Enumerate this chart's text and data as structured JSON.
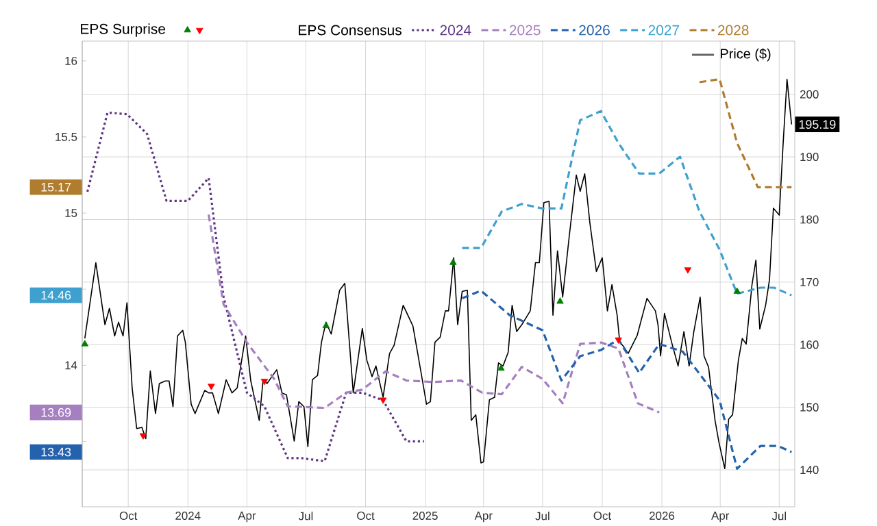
{
  "chart_data": {
    "type": "line",
    "xlim": [
      "2023-07-22",
      "2026-07-25"
    ],
    "xticks": [
      {
        "value": "2023-10-01",
        "label": "Oct"
      },
      {
        "value": "2024-01-01",
        "label": "2024"
      },
      {
        "value": "2024-04-01",
        "label": "Apr"
      },
      {
        "value": "2024-07-01",
        "label": "Jul"
      },
      {
        "value": "2024-10-01",
        "label": "Oct"
      },
      {
        "value": "2025-01-01",
        "label": "2025"
      },
      {
        "value": "2025-04-01",
        "label": "Apr"
      },
      {
        "value": "2025-07-01",
        "label": "Jul"
      },
      {
        "value": "2025-10-01",
        "label": "Oct"
      },
      {
        "value": "2026-01-01",
        "label": "2026"
      },
      {
        "value": "2026-04-01",
        "label": "Apr"
      },
      {
        "value": "2026-07-01",
        "label": "Jul"
      }
    ],
    "ylim": [
      13.07,
      16.13
    ],
    "yticks": [
      {
        "value": 13.5,
        "label": null
      },
      14,
      {
        "value": 14.5,
        "label": null
      },
      15,
      15.5,
      16
    ],
    "y2lim": [
      134.1,
      208.5
    ],
    "y2ticks": [
      140,
      150,
      160,
      170,
      180,
      190,
      200
    ],
    "grid": true,
    "legend": "top",
    "legend_title": "EPS Consensus",
    "annotations": [
      "EPS Surprise",
      "15.17",
      "14.46",
      "13.69",
      "13.43"
    ],
    "series": [
      {
        "type": "scatter",
        "axis": "y2",
        "marker": "triangle",
        "color": "#008000",
        "x": [
          "2023-07-26",
          "2024-08-01",
          "2025-02-13",
          "2025-04-28",
          "2025-07-28",
          "2026-04-27"
        ],
        "values": [
          160.1,
          163.0,
          173.1,
          156.2,
          166.9,
          168.5
        ]
      },
      {
        "type": "scatter",
        "axis": "y2",
        "marker": "triangle",
        "color": "#ff0000",
        "x": [
          "2023-10-24",
          "2024-02-06",
          "2024-04-28",
          "2024-10-28",
          "2025-10-26",
          "2026-02-10"
        ],
        "values": [
          145.5,
          153.4,
          154.2,
          151.2,
          160.8,
          172.0
        ]
      },
      {
        "name": "2024",
        "color": "#5e3585",
        "line_style": "dotted",
        "x": [
          "2023-07-30",
          "2023-08-30",
          "2023-09-29",
          "2023-10-30",
          "2023-11-29",
          "2024-01-01",
          "2024-02-02",
          "2024-02-25",
          "2024-04-01",
          "2024-04-28",
          "2024-06-03",
          "2024-06-24",
          "2024-07-30",
          "2024-09-01",
          "2024-09-26",
          "2024-10-28",
          "2024-12-03",
          "2024-12-30"
        ],
        "values": [
          15.14,
          15.66,
          15.65,
          15.52,
          15.08,
          15.08,
          15.23,
          14.45,
          13.82,
          13.73,
          13.39,
          13.39,
          13.37,
          13.82,
          13.82,
          13.77,
          13.5,
          13.5
        ]
      },
      {
        "name": "2025",
        "color": "#a57fbf",
        "line_style": "dashed",
        "x": [
          "2024-02-02",
          "2024-02-25",
          "2024-04-01",
          "2024-05-13",
          "2024-06-03",
          "2024-07-30",
          "2024-09-01",
          "2024-09-26",
          "2024-11-01",
          "2024-12-03",
          "2025-01-14",
          "2025-02-25",
          "2025-03-30",
          "2025-04-29",
          "2025-05-30",
          "2025-07-01",
          "2025-08-01",
          "2025-08-28",
          "2025-09-29",
          "2025-10-26",
          "2025-11-25",
          "2025-12-28"
        ],
        "values": [
          14.99,
          14.4,
          14.15,
          13.91,
          13.73,
          13.72,
          13.82,
          13.84,
          13.96,
          13.9,
          13.89,
          13.9,
          13.82,
          13.81,
          13.99,
          13.91,
          13.75,
          14.14,
          14.15,
          14.11,
          13.75,
          13.69
        ]
      },
      {
        "name": "2026",
        "color": "#2462ad",
        "line_style": "dashed",
        "x": [
          "2025-02-27",
          "2025-03-28",
          "2025-05-11",
          "2025-07-01",
          "2025-07-30",
          "2025-08-28",
          "2025-09-29",
          "2025-10-26",
          "2025-11-27",
          "2025-12-28",
          "2026-02-02",
          "2026-03-31",
          "2026-04-27",
          "2026-06-02",
          "2026-06-29",
          "2026-07-20"
        ],
        "values": [
          14.44,
          14.49,
          14.33,
          14.23,
          13.9,
          14.06,
          14.1,
          14.17,
          13.95,
          14.14,
          14.09,
          13.77,
          13.32,
          13.47,
          13.47,
          13.43
        ]
      },
      {
        "name": "2027",
        "color": "#3da0cf",
        "line_style": "dashed",
        "x": [
          "2025-02-27",
          "2025-03-28",
          "2025-04-29",
          "2025-05-30",
          "2025-07-01",
          "2025-07-30",
          "2025-08-28",
          "2025-09-29",
          "2025-10-26",
          "2025-11-27",
          "2025-12-28",
          "2026-01-29",
          "2026-02-28",
          "2026-03-31",
          "2026-04-27",
          "2026-06-02",
          "2026-06-23",
          "2026-07-20"
        ],
        "values": [
          14.77,
          14.77,
          15.01,
          15.06,
          15.03,
          15.03,
          15.61,
          15.67,
          15.46,
          15.26,
          15.26,
          15.37,
          15.01,
          14.76,
          14.47,
          14.51,
          14.51,
          14.46
        ]
      },
      {
        "name": "2028",
        "color": "#b07c2e",
        "line_style": "dashed",
        "x": [
          "2026-02-28",
          "2026-03-31",
          "2026-04-27",
          "2026-05-29",
          "2026-06-23",
          "2026-07-20"
        ],
        "values": [
          15.86,
          15.88,
          15.46,
          15.17,
          15.17,
          15.17
        ]
      },
      {
        "name": "Price ($)",
        "color": "#000000",
        "axis": "y2",
        "line_style": "solid",
        "x": [
          "2023-07-26",
          "2023-08-12",
          "2023-08-26",
          "2023-09-02",
          "2023-09-10",
          "2023-09-16",
          "2023-09-23",
          "2023-09-29",
          "2023-10-07",
          "2023-10-14",
          "2023-10-22",
          "2023-10-28",
          "2023-11-04",
          "2023-11-12",
          "2023-11-18",
          "2023-11-27",
          "2023-12-03",
          "2023-12-09",
          "2023-12-16",
          "2023-12-24",
          "2023-12-28",
          "2024-01-06",
          "2024-01-12",
          "2024-01-27",
          "2024-02-02",
          "2024-02-08",
          "2024-02-17",
          "2024-02-29",
          "2024-03-09",
          "2024-03-17",
          "2024-03-25",
          "2024-03-30",
          "2024-04-07",
          "2024-04-20",
          "2024-04-26",
          "2024-05-02",
          "2024-05-17",
          "2024-05-25",
          "2024-06-01",
          "2024-06-13",
          "2024-06-20",
          "2024-06-28",
          "2024-07-04",
          "2024-07-11",
          "2024-07-19",
          "2024-07-25",
          "2024-08-01",
          "2024-08-09",
          "2024-08-22",
          "2024-08-30",
          "2024-09-12",
          "2024-09-26",
          "2024-10-03",
          "2024-10-11",
          "2024-10-17",
          "2024-10-28",
          "2024-11-07",
          "2024-11-14",
          "2024-11-28",
          "2024-12-13",
          "2024-12-23",
          "2025-01-03",
          "2025-01-09",
          "2025-01-16",
          "2025-01-24",
          "2025-02-01",
          "2025-02-06",
          "2025-02-14",
          "2025-02-20",
          "2025-02-27",
          "2025-03-07",
          "2025-03-13",
          "2025-03-20",
          "2025-03-28",
          "2025-04-01",
          "2025-04-10",
          "2025-04-18",
          "2025-04-24",
          "2025-05-01",
          "2025-05-09",
          "2025-05-15",
          "2025-05-22",
          "2025-05-30",
          "2025-06-12",
          "2025-06-20",
          "2025-06-26",
          "2025-07-03",
          "2025-07-11",
          "2025-07-17",
          "2025-07-24",
          "2025-08-01",
          "2025-08-11",
          "2025-08-22",
          "2025-08-28",
          "2025-09-04",
          "2025-09-12",
          "2025-09-22",
          "2025-10-01",
          "2025-10-09",
          "2025-10-16",
          "2025-10-24",
          "2025-10-28",
          "2025-11-03",
          "2025-11-10",
          "2025-11-24",
          "2025-12-09",
          "2025-12-22",
          "2025-12-26",
          "2025-12-30",
          "2026-01-05",
          "2026-01-16",
          "2026-01-26",
          "2026-02-04",
          "2026-02-12",
          "2026-02-19",
          "2026-03-01",
          "2026-03-07",
          "2026-03-14",
          "2026-03-24",
          "2026-03-30",
          "2026-04-08",
          "2026-04-14",
          "2026-04-20",
          "2026-04-29",
          "2026-05-05",
          "2026-05-11",
          "2026-05-20",
          "2026-05-26",
          "2026-06-01",
          "2026-06-10",
          "2026-06-16",
          "2026-06-22",
          "2026-07-01",
          "2026-07-07",
          "2026-07-13",
          "2026-07-20"
        ],
        "values": [
          161.0,
          173.1,
          163.2,
          165.8,
          161.4,
          163.6,
          161.4,
          166.7,
          153.1,
          146.6,
          146.8,
          145.0,
          155.8,
          149.0,
          153.8,
          154.2,
          154.2,
          150.1,
          161.4,
          162.3,
          160.4,
          150.5,
          149.0,
          152.7,
          152.3,
          152.3,
          149.0,
          154.4,
          152.3,
          153.1,
          158.2,
          161.4,
          154.2,
          147.9,
          154.4,
          153.8,
          156.0,
          152.3,
          152.0,
          144.6,
          150.9,
          150.1,
          143.7,
          154.4,
          155.1,
          160.4,
          163.6,
          161.7,
          168.7,
          169.8,
          152.3,
          162.6,
          157.5,
          154.9,
          156.6,
          151.6,
          158.6,
          159.9,
          166.3,
          163.0,
          157.1,
          150.5,
          150.9,
          160.4,
          161.2,
          165.4,
          165.4,
          173.9,
          163.2,
          168.5,
          168.7,
          147.9,
          148.8,
          141.1,
          141.3,
          151.2,
          151.6,
          157.1,
          156.6,
          158.8,
          166.3,
          162.1,
          163.2,
          165.4,
          173.1,
          173.1,
          182.7,
          182.9,
          164.7,
          175.0,
          167.6,
          177.2,
          187.1,
          184.5,
          187.3,
          179.4,
          171.7,
          173.9,
          165.4,
          169.6,
          164.7,
          160.4,
          159.7,
          158.6,
          161.5,
          167.4,
          165.4,
          163.2,
          158.2,
          165.0,
          160.4,
          156.6,
          162.1,
          156.6,
          161.9,
          167.6,
          158.2,
          156.4,
          147.9,
          144.4,
          140.2,
          148.1,
          148.8,
          157.5,
          161.0,
          160.1,
          169.6,
          173.5,
          162.5,
          166.3,
          170.4,
          181.8,
          180.7,
          192.1,
          202.4,
          195.19
        ],
        "value_labels": [
          null,
          null,
          null,
          null,
          null,
          null,
          null,
          null,
          null,
          null,
          null,
          null,
          null,
          null,
          null,
          null,
          null,
          null,
          null,
          null,
          null,
          null,
          null,
          null,
          null,
          null,
          null,
          null,
          null,
          null,
          null,
          null,
          null,
          null,
          null,
          null,
          null,
          null,
          null,
          null,
          null,
          null,
          null,
          null,
          null,
          null,
          null,
          null,
          null,
          null,
          null,
          null,
          null,
          null,
          null,
          null,
          null,
          null,
          null,
          null,
          null,
          null,
          null,
          null,
          null,
          null,
          null,
          null,
          null,
          null,
          null,
          null,
          null,
          null,
          null,
          null,
          null,
          null,
          null,
          null,
          null,
          null,
          null,
          null,
          null,
          null,
          null,
          null,
          null,
          null,
          null,
          null,
          null,
          null,
          null,
          null,
          null,
          null,
          null,
          null,
          null,
          null,
          null,
          null,
          null,
          null,
          null,
          null,
          null,
          null,
          null,
          null,
          null,
          null,
          null,
          null,
          null,
          null,
          null,
          null,
          null,
          null,
          null,
          null,
          null,
          null,
          null,
          null,
          null,
          null,
          null,
          null,
          null,
          null,
          null,
          "195.19"
        ]
      }
    ]
  }
}
